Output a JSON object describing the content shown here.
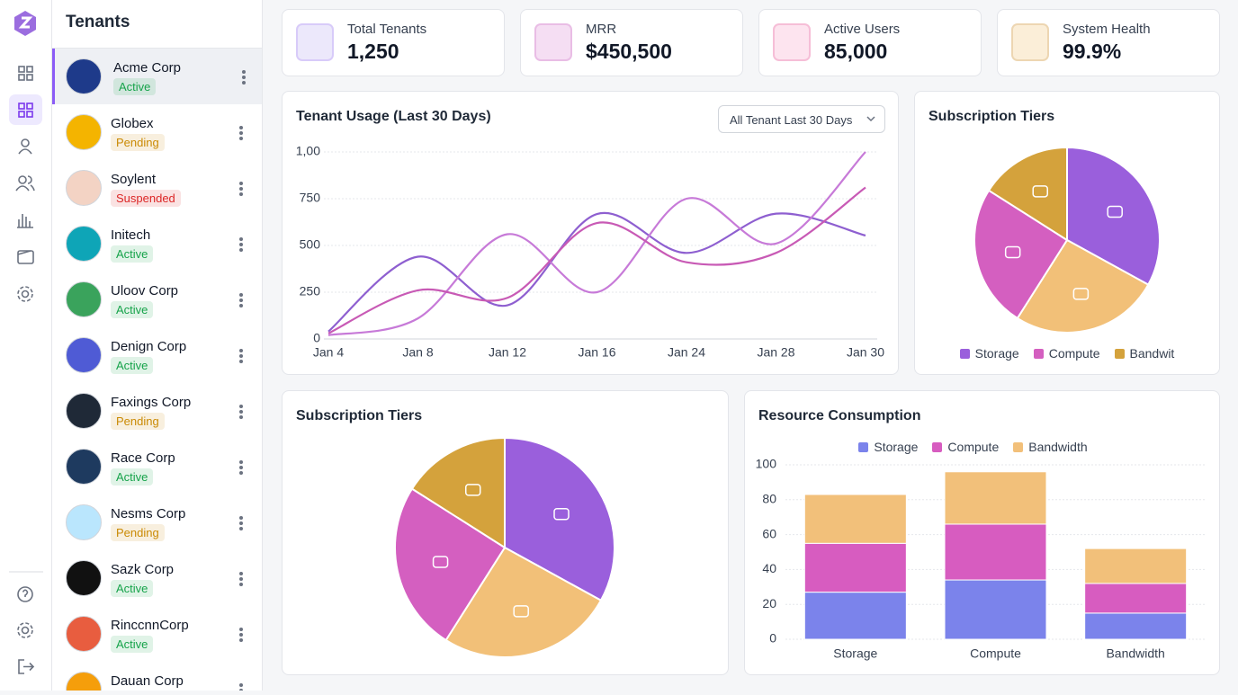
{
  "sidebar": {
    "title": "Tenants"
  },
  "tenants": [
    {
      "name": "Acme Corp",
      "status": "Active",
      "status_color": "#16a34a",
      "logo_color": "#1e3a8a"
    },
    {
      "name": "Globex",
      "status": "Pending",
      "status_color": "#ca8a04",
      "logo_color": "#f4b400"
    },
    {
      "name": "Soylent",
      "status": "Suspended",
      "status_color": "#dc2626",
      "logo_color": "#f3d3c4"
    },
    {
      "name": "Initech",
      "status": "Active",
      "status_color": "#16a34a",
      "logo_color": "#0ea5b7"
    },
    {
      "name": "Uloov Corp",
      "status": "Active",
      "status_color": "#16a34a",
      "logo_color": "#3aa35c"
    },
    {
      "name": "Denign Corp",
      "status": "Active",
      "status_color": "#16a34a",
      "logo_color": "#4f5bd5"
    },
    {
      "name": "Faxings Corp",
      "status": "Pending",
      "status_color": "#ca8a04",
      "logo_color": "#1f2937"
    },
    {
      "name": "Race Corp",
      "status": "Active",
      "status_color": "#16a34a",
      "logo_color": "#1e3a5f"
    },
    {
      "name": "Nesms Corp",
      "status": "Pending",
      "status_color": "#ca8a04",
      "logo_color": "#bae6fd"
    },
    {
      "name": "Sazk Corp",
      "status": "Active",
      "status_color": "#16a34a",
      "logo_color": "#111111"
    },
    {
      "name": "RinccnnCorp",
      "status": "Active",
      "status_color": "#16a34a",
      "logo_color": "#e85d3f"
    },
    {
      "name": "Dauan Corp",
      "logo_color": "#f59e0b"
    }
  ],
  "stats": [
    {
      "label": "Total Tenants",
      "value": "1,250",
      "icon_bg": "#ece8fb",
      "icon_color": "#8b5cf6"
    },
    {
      "label": "MRR",
      "value": "$450,500",
      "icon_bg": "#f5def3",
      "icon_color": "#b83ab0"
    },
    {
      "label": "Active Users",
      "value": "85,000",
      "icon_bg": "#fde4ef",
      "icon_color": "#db2777"
    },
    {
      "label": "System Health",
      "value": "99.9%",
      "icon_bg": "#fbeed8",
      "icon_color": "#b7791f"
    }
  ],
  "usage_filter": "All Tenant Last 30 Days",
  "chart_data": [
    {
      "type": "line",
      "title": "Tenant Usage (Last 30 Days)",
      "categories": [
        "Jan 4",
        "Jan 8",
        "Jan 12",
        "Jan 16",
        "Jan 24",
        "Jan 28",
        "Jan 30"
      ],
      "series": [
        {
          "color": "#8e5fd0",
          "values": [
            40,
            440,
            180,
            668,
            460,
            670,
            553
          ]
        },
        {
          "color": "#c77ad8",
          "values": [
            20,
            110,
            560,
            250,
            750,
            510,
            1000
          ]
        },
        {
          "color": "#c85ab5",
          "values": [
            30,
            260,
            220,
            620,
            410,
            460,
            810
          ]
        }
      ],
      "ylim": [
        0,
        1000
      ],
      "yticks": [
        0,
        250,
        500,
        750,
        {
          "value": 1000,
          "label": "1,00"
        }
      ],
      "grid": true
    },
    {
      "type": "pie",
      "title": "Subscription Tiers",
      "categories": [
        "Storage",
        null,
        "Compute",
        "Bandwit"
      ],
      "values": [
        33,
        26,
        25,
        16
      ],
      "colors": [
        "#9a5fdc",
        "#f2c078",
        "#d45fc0",
        "#d4a23c"
      ],
      "legend": "bottom"
    },
    {
      "type": "pie",
      "title": "Subscription Tiers",
      "values": [
        33,
        26,
        25,
        16
      ],
      "colors": [
        "#9a5fdc",
        "#f2c078",
        "#d45fc0",
        "#d4a23c"
      ]
    },
    {
      "type": "stacked-bar",
      "title": "Resource Consumption",
      "categories": [
        "Storage",
        "Compute",
        "Bandwidth"
      ],
      "series": [
        {
          "name": "Storage",
          "color": "#7b83eb",
          "values": [
            27,
            34,
            15
          ]
        },
        {
          "name": "Compute",
          "color": "#d75cc0",
          "values": [
            28,
            32,
            17
          ]
        },
        {
          "name": "Bandwidth",
          "color": "#f2c07a",
          "values": [
            28,
            30,
            20
          ]
        }
      ],
      "ylim": [
        0,
        100
      ],
      "yticks": [
        0,
        20,
        40,
        60,
        80,
        100
      ],
      "grid": true,
      "legend": "top"
    }
  ]
}
